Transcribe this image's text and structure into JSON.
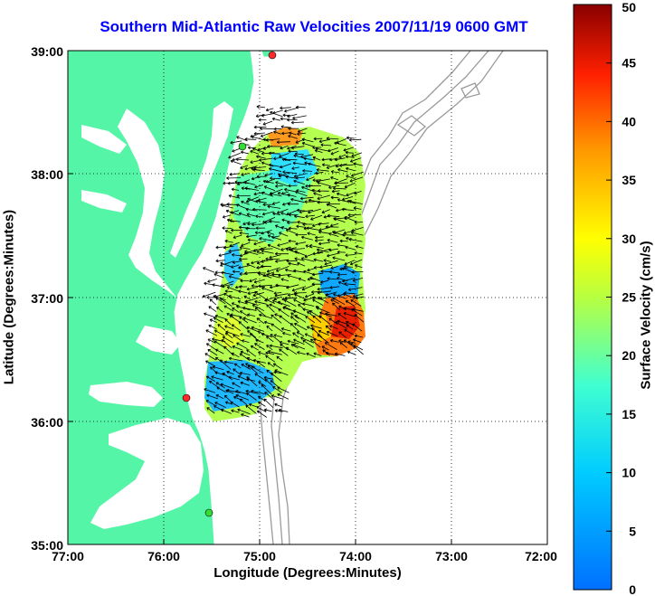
{
  "title": "Southern Mid-Atlantic Raw Velocities 2007/11/19 0600 GMT",
  "xlabel": "Longitude (Degrees:Minutes)",
  "ylabel": "Latitude (Degrees:Minutes)",
  "colorbar_label": "Surface Velocity (cm/s)",
  "x_ticks": [
    "77:00",
    "76:00",
    "75:00",
    "74:00",
    "73:00",
    "72:00"
  ],
  "y_ticks": [
    "39:00",
    "38:00",
    "37:00",
    "36:00",
    "35:00"
  ],
  "colorbar_ticks": [
    "0",
    "5",
    "10",
    "15",
    "20",
    "25",
    "30",
    "35",
    "40",
    "45",
    "50"
  ],
  "colors": {
    "land": "#55f5a8",
    "title": "#0000ff",
    "station_red": "#ff2a2a",
    "station_green": "#33dd33",
    "bathymetry": "#9a9a9a"
  },
  "stations": [
    {
      "color": "red"
    },
    {
      "color": "green"
    },
    {
      "color": "red"
    },
    {
      "color": "green"
    }
  ]
}
